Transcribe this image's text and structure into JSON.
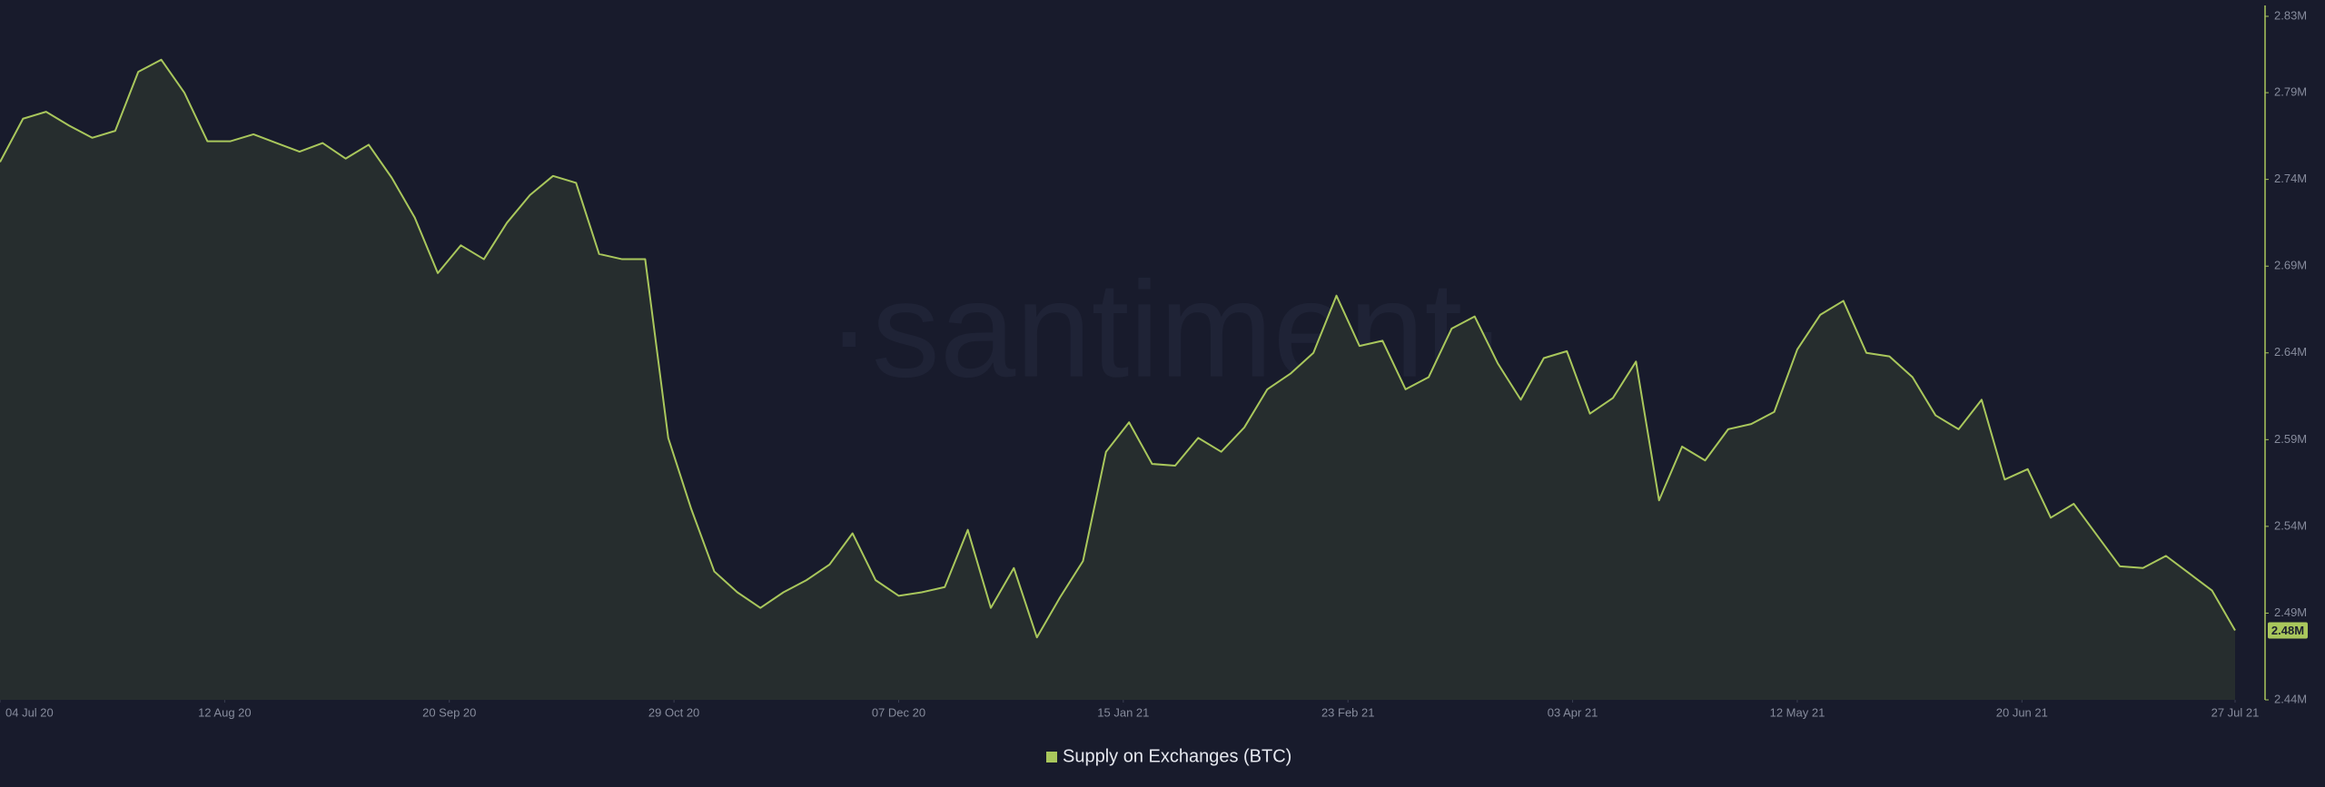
{
  "chart_data": {
    "type": "area",
    "watermark": "·santiment·",
    "x": [
      "2020-07-04",
      "2020-07-08",
      "2020-07-12",
      "2020-07-16",
      "2020-07-20",
      "2020-07-24",
      "2020-07-28",
      "2020-08-01",
      "2020-08-05",
      "2020-08-09",
      "2020-08-13",
      "2020-08-17",
      "2020-08-21",
      "2020-08-25",
      "2020-08-29",
      "2020-09-02",
      "2020-09-06",
      "2020-09-10",
      "2020-09-14",
      "2020-09-18",
      "2020-09-22",
      "2020-09-26",
      "2020-09-30",
      "2020-10-04",
      "2020-10-08",
      "2020-10-12",
      "2020-10-16",
      "2020-10-20",
      "2020-10-24",
      "2020-10-28",
      "2020-11-01",
      "2020-11-05",
      "2020-11-09",
      "2020-11-13",
      "2020-11-17",
      "2020-11-21",
      "2020-11-25",
      "2020-11-29",
      "2020-12-03",
      "2020-12-07",
      "2020-12-11",
      "2020-12-15",
      "2020-12-19",
      "2020-12-23",
      "2020-12-27",
      "2020-12-31",
      "2021-01-04",
      "2021-01-08",
      "2021-01-12",
      "2021-01-16",
      "2021-01-20",
      "2021-01-24",
      "2021-01-28",
      "2021-02-01",
      "2021-02-05",
      "2021-02-09",
      "2021-02-13",
      "2021-02-17",
      "2021-02-21",
      "2021-02-25",
      "2021-03-01",
      "2021-03-05",
      "2021-03-09",
      "2021-03-13",
      "2021-03-17",
      "2021-03-21",
      "2021-03-25",
      "2021-03-29",
      "2021-04-02",
      "2021-04-06",
      "2021-04-10",
      "2021-04-14",
      "2021-04-18",
      "2021-04-22",
      "2021-04-26",
      "2021-04-30",
      "2021-05-04",
      "2021-05-08",
      "2021-05-12",
      "2021-05-16",
      "2021-05-20",
      "2021-05-24",
      "2021-05-28",
      "2021-06-01",
      "2021-06-05",
      "2021-06-09",
      "2021-06-13",
      "2021-06-17",
      "2021-06-21",
      "2021-06-25",
      "2021-06-29",
      "2021-07-03",
      "2021-07-07",
      "2021-07-11",
      "2021-07-15",
      "2021-07-19",
      "2021-07-23",
      "2021-07-27"
    ],
    "series": [
      {
        "name": "Supply on Exchanges (BTC)",
        "color": "#a9c75c",
        "fill": "#262d2e",
        "values": [
          2750000,
          2775000,
          2779000,
          2771000,
          2764000,
          2768000,
          2802000,
          2809000,
          2790000,
          2762000,
          2762000,
          2766000,
          2761000,
          2756000,
          2761000,
          2752000,
          2760000,
          2741000,
          2718000,
          2686000,
          2702000,
          2694000,
          2715000,
          2731000,
          2742000,
          2738000,
          2697000,
          2694000,
          2694000,
          2591000,
          2550000,
          2514000,
          2502000,
          2493000,
          2502000,
          2509000,
          2518000,
          2536000,
          2509000,
          2500000,
          2502000,
          2505000,
          2538000,
          2493000,
          2516000,
          2476000,
          2499000,
          2520000,
          2583000,
          2600000,
          2576000,
          2575000,
          2591000,
          2583000,
          2597000,
          2619000,
          2628000,
          2640000,
          2673000,
          2644000,
          2647000,
          2619000,
          2626000,
          2654000,
          2661000,
          2634000,
          2613000,
          2637000,
          2641000,
          2605000,
          2614000,
          2635000,
          2555000,
          2586000,
          2578000,
          2596000,
          2599000,
          2606000,
          2642000,
          2662000,
          2670000,
          2640000,
          2638000,
          2626000,
          2604000,
          2596000,
          2613000,
          2567000,
          2573000,
          2545000,
          2553000,
          2535000,
          2517000,
          2516000,
          2523000,
          2513000,
          2503000,
          2480000
        ]
      }
    ],
    "last_value_label": "2.48M",
    "xlim": [
      "2020-07-04",
      "2021-07-27"
    ],
    "xticks": [
      {
        "value": "2020-07-04",
        "label": "04 Jul 20"
      },
      {
        "value": "2020-08-12",
        "label": "12 Aug 20"
      },
      {
        "value": "2020-09-20",
        "label": "20 Sep 20"
      },
      {
        "value": "2020-10-29",
        "label": "29 Oct 20"
      },
      {
        "value": "2020-12-07",
        "label": "07 Dec 20"
      },
      {
        "value": "2021-01-15",
        "label": "15 Jan 21"
      },
      {
        "value": "2021-02-23",
        "label": "23 Feb 21"
      },
      {
        "value": "2021-04-03",
        "label": "03 Apr 21"
      },
      {
        "value": "2021-05-12",
        "label": "12 May 21"
      },
      {
        "value": "2021-06-20",
        "label": "20 Jun 21"
      },
      {
        "value": "2021-07-27",
        "label": "27 Jul 21"
      }
    ],
    "ylim": [
      2440000,
      2834000
    ],
    "yticks": [
      {
        "value": 2440000,
        "label": "2.44M"
      },
      {
        "value": 2490000,
        "label": "2.49M"
      },
      {
        "value": 2540000,
        "label": "2.54M"
      },
      {
        "value": 2590000,
        "label": "2.59M"
      },
      {
        "value": 2640000,
        "label": "2.64M"
      },
      {
        "value": 2690000,
        "label": "2.69M"
      },
      {
        "value": 2740000,
        "label": "2.74M"
      },
      {
        "value": 2790000,
        "label": "2.79M"
      },
      {
        "value": 2834000,
        "label": "2.83M"
      }
    ],
    "grid": false
  }
}
